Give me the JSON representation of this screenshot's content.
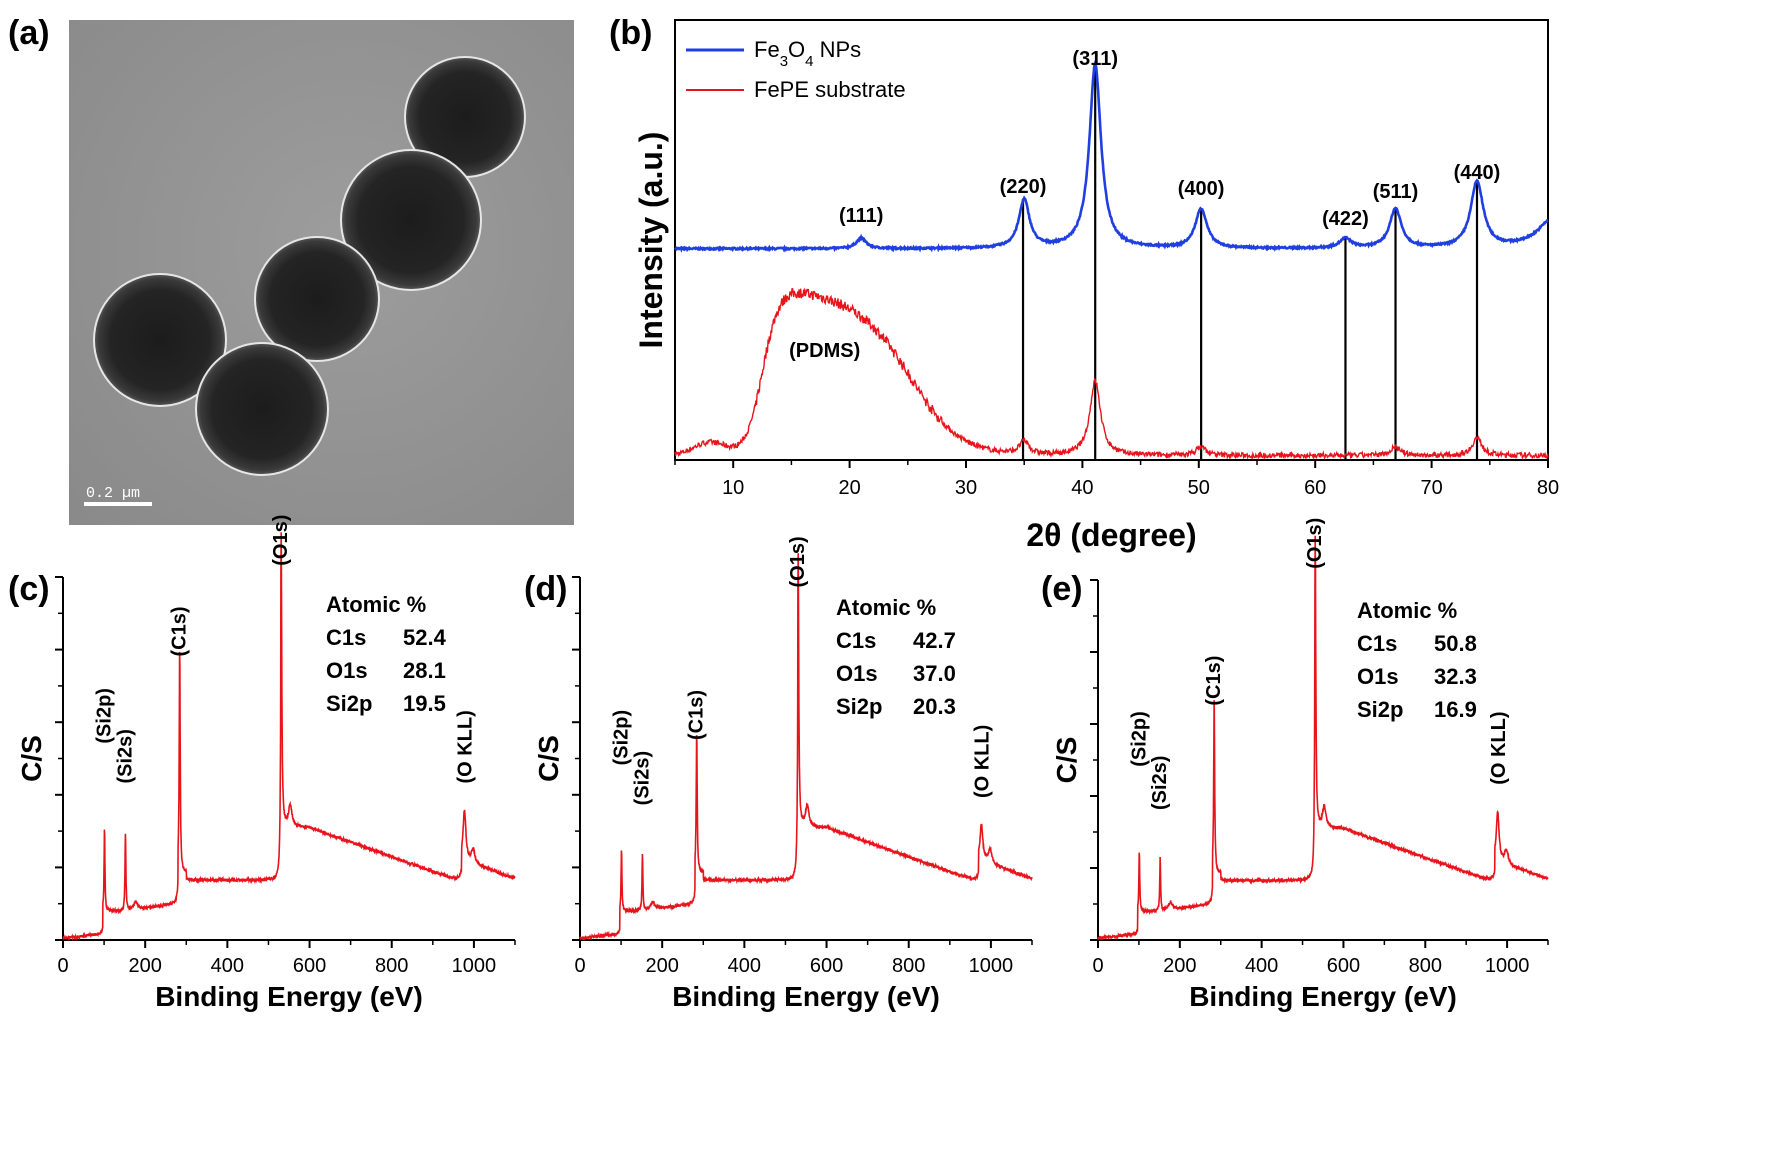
{
  "panel_labels": {
    "a": "(a)",
    "b": "(b)",
    "c": "(c)",
    "d": "(d)",
    "e": "(e)"
  },
  "tem": {
    "scale_bar_label": "0.2 µm"
  },
  "colors": {
    "blue": "#1f3fe0",
    "red": "#e8141c",
    "axis": "#000000"
  },
  "chart_data": [
    {
      "id": "b",
      "type": "line",
      "title": "",
      "xlabel": "2θ (degree)",
      "ylabel": "Intensity (a.u.)",
      "xlim": [
        5,
        80
      ],
      "xticks": [
        10,
        20,
        30,
        40,
        50,
        60,
        70,
        80
      ],
      "yticks": [],
      "legend_position": "top-left",
      "series": [
        {
          "name": "Fe3O4 NPs",
          "name_parts": {
            "pre": "Fe",
            "sub1": "3",
            "mid": "O",
            "sub2": "4",
            "post": " NPs"
          },
          "color": "#1f3fe0",
          "baseline": 0.48,
          "peaks": [
            {
              "x": 21.0,
              "h": 0.024,
              "w": 0.5
            },
            {
              "x": 35.0,
              "h": 0.11,
              "w": 0.55
            },
            {
              "x": 41.1,
              "h": 0.42,
              "w": 0.6
            },
            {
              "x": 50.2,
              "h": 0.09,
              "w": 0.6
            },
            {
              "x": 62.6,
              "h": 0.022,
              "w": 0.6
            },
            {
              "x": 66.9,
              "h": 0.09,
              "w": 0.6
            },
            {
              "x": 73.9,
              "h": 0.15,
              "w": 0.65
            },
            {
              "x": 80.5,
              "h": 0.07,
              "w": 1.6
            }
          ]
        },
        {
          "name": "FePE substrate",
          "color": "#e8141c",
          "baseline": 0.01,
          "peaks": [
            {
              "x": 35.0,
              "h": 0.03,
              "w": 0.5
            },
            {
              "x": 41.1,
              "h": 0.17,
              "w": 0.55
            },
            {
              "x": 50.2,
              "h": 0.02,
              "w": 0.5
            },
            {
              "x": 66.9,
              "h": 0.02,
              "w": 0.5
            },
            {
              "x": 73.9,
              "h": 0.04,
              "w": 0.5
            }
          ]
        }
      ],
      "reference_lines": [
        34.9,
        41.1,
        50.2,
        62.6,
        66.9,
        73.9
      ],
      "annotations": [
        {
          "text": "(111)",
          "x": 21.0
        },
        {
          "text": "(220)",
          "x": 34.9
        },
        {
          "text": "(311)",
          "x": 41.1
        },
        {
          "text": "(400)",
          "x": 50.2
        },
        {
          "text": "(422)",
          "x": 62.6
        },
        {
          "text": "(511)",
          "x": 66.9
        },
        {
          "text": "(440)",
          "x": 73.9
        },
        {
          "text": "(PDMS)",
          "x": 17.0
        }
      ]
    },
    {
      "id": "c",
      "type": "line",
      "xlabel": "Binding Energy (eV)",
      "ylabel": "C/S",
      "xlim": [
        0,
        1100
      ],
      "xticks": [
        0,
        200,
        400,
        600,
        800,
        1000
      ],
      "ylim": [
        0,
        1
      ],
      "peaks": {
        "Si2p": 0.31,
        "Si2s": 0.3,
        "C1s": 0.72,
        "O1s": 0.98,
        "OKLL": 0.36
      },
      "peak_labels": [
        "(Si2p)",
        "(Si2s)",
        "(C1s)",
        "(O1s)",
        "(O KLL)"
      ],
      "table": {
        "title": "Atomic %",
        "rows": [
          {
            "label": "C1s",
            "value": "52.4"
          },
          {
            "label": "O1s",
            "value": "28.1"
          },
          {
            "label": "Si2p",
            "value": "19.5"
          }
        ]
      }
    },
    {
      "id": "d",
      "type": "line",
      "xlabel": "Binding Energy (eV)",
      "ylabel": "C/S",
      "xlim": [
        0,
        1100
      ],
      "xticks": [
        0,
        200,
        400,
        600,
        800,
        1000
      ],
      "ylim": [
        0,
        1
      ],
      "peaks": {
        "Si2p": 0.25,
        "Si2s": 0.24,
        "C1s": 0.49,
        "O1s": 0.92,
        "OKLL": 0.32
      },
      "peak_labels": [
        "(Si2p)",
        "(Si2s)",
        "(C1s)",
        "(O1s)",
        "(O KLL)"
      ],
      "table": {
        "title": "Atomic %",
        "rows": [
          {
            "label": "C1s",
            "value": "42.7"
          },
          {
            "label": "O1s",
            "value": "37.0"
          },
          {
            "label": "Si2p",
            "value": "20.3"
          }
        ]
      }
    },
    {
      "id": "e",
      "type": "line",
      "xlabel": "Binding Energy (eV)",
      "ylabel": "C/S",
      "xlim": [
        0,
        1100
      ],
      "xticks": [
        0,
        200,
        400,
        600,
        800,
        1000
      ],
      "ylim": [
        0,
        1
      ],
      "peaks": {
        "Si2p": 0.25,
        "Si2s": 0.23,
        "C1s": 0.59,
        "O1s": 0.98,
        "OKLL": 0.36
      },
      "peak_labels": [
        "(Si2p)",
        "(Si2s)",
        "(C1s)",
        "(O1s)",
        "(O KLL)"
      ],
      "table": {
        "title": "Atomic %",
        "rows": [
          {
            "label": "C1s",
            "value": "50.8"
          },
          {
            "label": "O1s",
            "value": "32.3"
          },
          {
            "label": "Si2p",
            "value": "16.9"
          }
        ]
      }
    }
  ]
}
